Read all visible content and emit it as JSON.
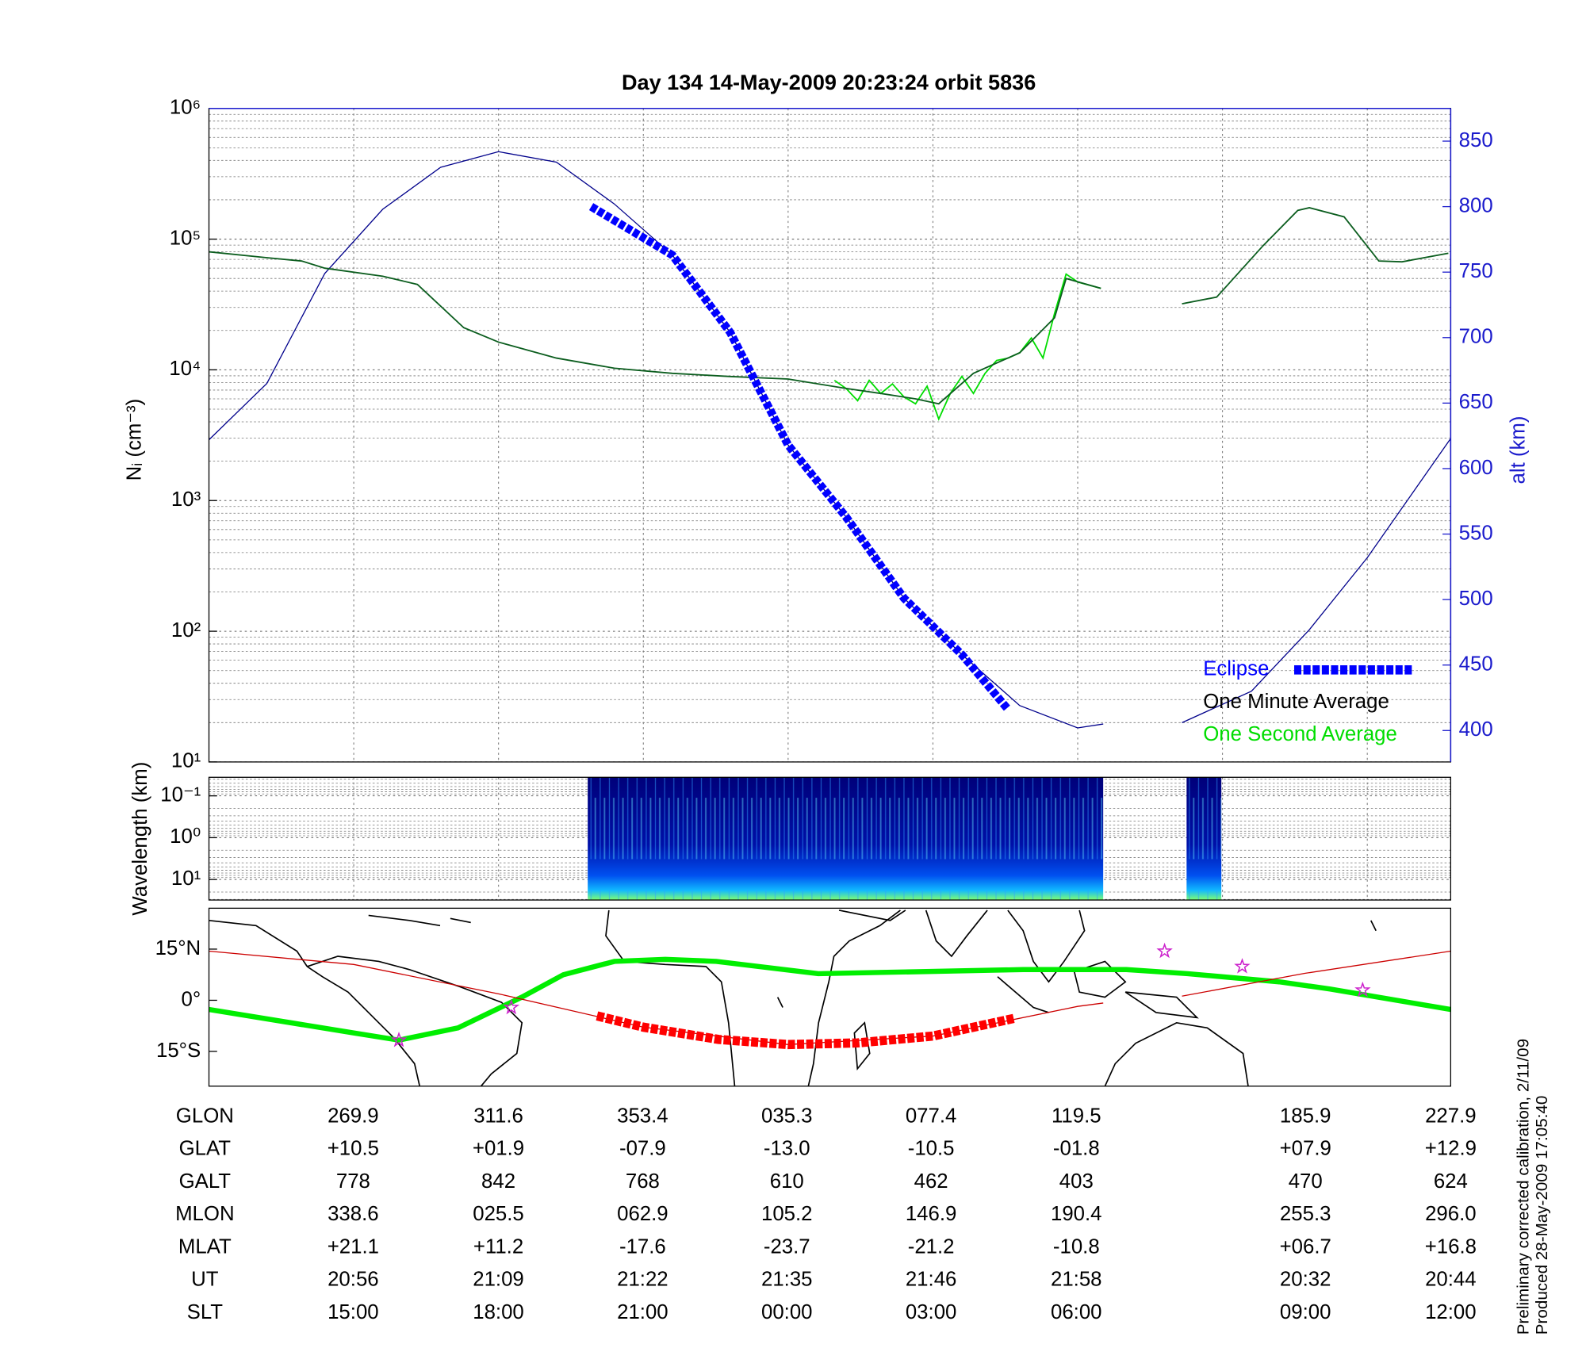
{
  "chart_data": [
    {
      "type": "line",
      "title": "Day 134  14-May-2009 20:23:24   orbit 5836",
      "ylabel": "Nᵢ (cm⁻³)",
      "y2label": "alt (km)",
      "xlim": [
        0,
        107.2
      ],
      "xticks": [
        12.5,
        25,
        37.5,
        50,
        62.5,
        75,
        87.5,
        100
      ],
      "ylog": true,
      "ylim": [
        10,
        1000000
      ],
      "yticks": [
        {
          "value": 10,
          "label": "10¹"
        },
        {
          "value": 100,
          "label": "10²"
        },
        {
          "value": 1000,
          "label": "10³"
        },
        {
          "value": 10000,
          "label": "10⁴"
        },
        {
          "value": 100000,
          "label": "10⁵"
        },
        {
          "value": 1000000,
          "label": "10⁶"
        }
      ],
      "y2lim": [
        376,
        875
      ],
      "y2ticks": [
        400,
        450,
        500,
        550,
        600,
        650,
        700,
        750,
        800,
        850
      ],
      "y2color": "#1a1acc",
      "grid": true,
      "minor_grid": true,
      "legend": "lower right",
      "series": [
        {
          "name": "Eclipse",
          "color": "#0000ff",
          "axis": "y2",
          "style": "dashed",
          "x": [
            33,
            40,
            45,
            50,
            55,
            60,
            65,
            69
          ],
          "values": [
            800,
            763,
            704,
            618,
            563,
            501,
            458,
            416
          ]
        },
        {
          "name": "One Minute Average",
          "color": "#0b5d1e",
          "legend_color": "#000000",
          "x": [
            0,
            5,
            8,
            10,
            15,
            18,
            22,
            25,
            30,
            35,
            40,
            45,
            50,
            55,
            58,
            61,
            63,
            66,
            70,
            73,
            74,
            77,
            null,
            84,
            87,
            91,
            94,
            95,
            98,
            101,
            103,
            107
          ],
          "values": [
            80000,
            72000,
            68000,
            60000,
            52000,
            45000,
            21000,
            16300,
            12300,
            10300,
            9400,
            8900,
            8500,
            7200,
            6600,
            6000,
            5500,
            9400,
            13500,
            25000,
            50000,
            42000,
            null,
            32000,
            36000,
            89000,
            166000,
            174000,
            148000,
            68000,
            67000,
            78000
          ]
        },
        {
          "name": "One Second Average",
          "color": "#00dd00",
          "x": [
            54,
            55,
            56,
            57,
            58,
            59,
            60,
            61,
            62,
            63,
            64,
            65,
            66,
            67,
            68,
            69,
            70,
            71,
            72,
            73,
            74,
            75,
            77
          ],
          "values": [
            8300,
            7200,
            5800,
            8300,
            6600,
            7800,
            6200,
            5500,
            7500,
            4200,
            6600,
            8900,
            6600,
            9400,
            11800,
            12300,
            13500,
            17500,
            12300,
            27000,
            54000,
            47000,
            42000
          ]
        },
        {
          "color": "#00008b",
          "axis": "y2",
          "x": [
            0,
            5,
            10,
            15,
            20,
            25,
            30,
            35,
            40,
            45,
            50,
            55,
            60,
            65,
            70,
            75,
            77.2,
            null,
            84,
            90,
            95,
            100,
            107.2
          ],
          "values": [
            622,
            665,
            749,
            798,
            830,
            842,
            834,
            802,
            763,
            704,
            618,
            563,
            501,
            458,
            419,
            402,
            405,
            null,
            406,
            430,
            477,
            532,
            623
          ]
        }
      ]
    },
    {
      "type": "spectrogram",
      "ylabel": "Wavelength (km)",
      "xlim": [
        0,
        107.2
      ],
      "xticks": [
        12.5,
        25,
        37.5,
        50,
        62.5,
        75,
        87.5,
        100
      ],
      "ylog": true,
      "yreverse": true,
      "ylim": [
        0.036,
        31
      ],
      "yticks": [
        {
          "value": 0.1,
          "label": "10⁻¹"
        },
        {
          "value": 1,
          "label": "10⁰"
        },
        {
          "value": 10,
          "label": "10¹"
        }
      ],
      "grid": true,
      "minor_grid": true,
      "segments": [
        {
          "x": [
            32.7,
            77.2
          ]
        },
        {
          "x": [
            84.4,
            87.4
          ]
        }
      ]
    },
    {
      "type": "map-track",
      "xlim": [
        0,
        107.2
      ],
      "ylim": [
        -25.2,
        27
      ],
      "yticks": [
        {
          "value": 15,
          "label": "15°N"
        },
        {
          "value": 0,
          "label": "0°"
        },
        {
          "value": -15,
          "label": "15°S"
        }
      ],
      "series": [
        {
          "color": "#00ee00",
          "style": "thick",
          "x": [
            0,
            12.5,
            16.4,
            21.5,
            27,
            30.6,
            35,
            39.4,
            43.8,
            52.6,
            61.5,
            70.3,
            79.2,
            84.5,
            92.4,
            96.8,
            107.2
          ],
          "values": [
            -2.7,
            -9.6,
            -11.7,
            -8.1,
            0.9,
            7.5,
            11.4,
            12,
            11.4,
            7.8,
            8.4,
            9,
            9,
            7.8,
            5.4,
            3.3,
            -2.7
          ]
        },
        {
          "color": "#cc0000",
          "x": [
            0,
            12.5,
            25,
            37.5,
            50,
            62.5,
            75,
            77.2,
            null,
            84,
            94.6,
            107.2
          ],
          "values": [
            14.4,
            10.5,
            1.9,
            -7.9,
            -13,
            -10.5,
            -1.8,
            -0.8,
            null,
            1.2,
            7.9,
            14.4
          ]
        },
        {
          "color": "#ff0000",
          "style": "dashed",
          "x": [
            33.5,
            37.5,
            44,
            50,
            56,
            62.5,
            69.5
          ],
          "values": [
            -4.6,
            -7.9,
            -11.5,
            -13,
            -12.5,
            -10.5,
            -5.3
          ]
        },
        {
          "color": "#cc22cc",
          "marker": "star",
          "x": [
            16.4,
            26.1,
            82.5,
            89.2,
            99.6
          ],
          "values": [
            -11.7,
            -2.1,
            14.4,
            9.9,
            3
          ]
        }
      ]
    }
  ],
  "table": {
    "rows": [
      [
        "GLON",
        "269.9",
        "311.6",
        "353.4",
        "035.3",
        "077.4",
        "119.5",
        "185.9",
        "227.9"
      ],
      [
        "GLAT",
        "+10.5",
        "+01.9",
        "-07.9",
        "-13.0",
        "-10.5",
        "-01.8",
        "+07.9",
        "+12.9"
      ],
      [
        "GALT",
        "778",
        "842",
        "768",
        "610",
        "462",
        "403",
        "470",
        "624"
      ],
      [
        "MLON",
        "338.6",
        "025.5",
        "062.9",
        "105.2",
        "146.9",
        "190.4",
        "255.3",
        "296.0"
      ],
      [
        "MLAT",
        "+21.1",
        "+11.2",
        "-17.6",
        "-23.7",
        "-21.2",
        "-10.8",
        "+06.7",
        "+16.8"
      ],
      [
        "UT",
        "20:56",
        "21:09",
        "21:22",
        "21:35",
        "21:46",
        "21:58",
        "20:32",
        "20:44"
      ],
      [
        "SLT",
        "15:00",
        "18:00",
        "21:00",
        "00:00",
        "03:00",
        "06:00",
        "09:00",
        "12:00"
      ]
    ]
  },
  "notes": [
    "Preliminary corrected calibration, 2/11/09",
    "Produced 28-May-2009 17:05:40"
  ]
}
